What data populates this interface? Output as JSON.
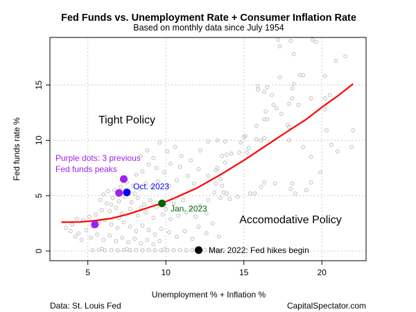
{
  "chart_data": {
    "type": "scatter",
    "title": "Fed Funds vs. Unemployment Rate + Consumer Inflation Rate",
    "subtitle": "Based on monthly data since July 1954",
    "xlabel": "Unemployment % + Inflation %",
    "ylabel": "Fed funds rate %",
    "xlim": [
      2.57,
      22.83
    ],
    "ylim": [
      -0.875,
      19.3
    ],
    "xticks": [
      5,
      10,
      15,
      20
    ],
    "yticks": [
      0,
      5,
      10,
      15
    ],
    "grid": true,
    "point_color": "#bebebe",
    "fit_color": "#ff0000",
    "points": [
      [
        17.2,
        19.1
      ],
      [
        18.0,
        19.0
      ],
      [
        19.4,
        19.1
      ],
      [
        19.6,
        18.9
      ],
      [
        17.3,
        18.5
      ],
      [
        18.2,
        17.8
      ],
      [
        20.9,
        17.2
      ],
      [
        21.5,
        17.6
      ],
      [
        17.3,
        15.7
      ],
      [
        18.6,
        15.9
      ],
      [
        18.8,
        15.9
      ],
      [
        20.2,
        15.8
      ],
      [
        15.9,
        14.6
      ],
      [
        15.9,
        14.9
      ],
      [
        16.5,
        14.8
      ],
      [
        16.3,
        14.4
      ],
      [
        18.2,
        15.1
      ],
      [
        18.1,
        14.7
      ],
      [
        16.8,
        14.1
      ],
      [
        18.1,
        13.8
      ],
      [
        17.9,
        13.3
      ],
      [
        19.3,
        13.8
      ],
      [
        18.5,
        13.2
      ],
      [
        16.9,
        13.2
      ],
      [
        17.1,
        12.9
      ],
      [
        17.4,
        12.4
      ],
      [
        16.4,
        12.6
      ],
      [
        16.3,
        11.9
      ],
      [
        16.5,
        11.9
      ],
      [
        15.8,
        11.3
      ],
      [
        17.8,
        11.4
      ],
      [
        17.9,
        11.2
      ],
      [
        20.5,
        14.1
      ],
      [
        20.2,
        13.8
      ],
      [
        20.2,
        12.8
      ],
      [
        20.3,
        10.9
      ],
      [
        22.0,
        10.9
      ],
      [
        20.6,
        9.6
      ],
      [
        21.0,
        9.0
      ],
      [
        21.9,
        9.4
      ],
      [
        19.9,
        7.1
      ],
      [
        19.3,
        8.5
      ],
      [
        18.8,
        9.4
      ],
      [
        17.9,
        10.0
      ],
      [
        16.3,
        10.2
      ],
      [
        15.8,
        10.1
      ],
      [
        16.1,
        10.0
      ],
      [
        15.1,
        10.4
      ],
      [
        15.0,
        10.3
      ],
      [
        14.8,
        9.8
      ],
      [
        15.3,
        9.3
      ],
      [
        15.2,
        8.9
      ],
      [
        14.7,
        8.9
      ],
      [
        14.2,
        8.8
      ],
      [
        13.9,
        8.7
      ],
      [
        13.6,
        8.6
      ],
      [
        13.8,
        8.0
      ],
      [
        13.3,
        7.5
      ],
      [
        13.2,
        7.3
      ],
      [
        12.7,
        6.8
      ],
      [
        13.5,
        6.5
      ],
      [
        13.2,
        6.1
      ],
      [
        13.6,
        5.9
      ],
      [
        16.3,
        6.2
      ],
      [
        16.1,
        5.8
      ],
      [
        17.0,
        6.1
      ],
      [
        18.1,
        6.1
      ],
      [
        19.3,
        6.2
      ],
      [
        18.0,
        5.6
      ],
      [
        18.3,
        5.2
      ],
      [
        19.0,
        5.5
      ],
      [
        15.4,
        5.2
      ],
      [
        15.7,
        5.2
      ],
      [
        14.6,
        4.9
      ],
      [
        14.1,
        4.7
      ],
      [
        13.7,
        5.3
      ],
      [
        13.9,
        5.2
      ],
      [
        13.1,
        5.3
      ],
      [
        12.7,
        4.6
      ],
      [
        13.5,
        4.8
      ],
      [
        12.7,
        9.9
      ],
      [
        13.3,
        10.0
      ],
      [
        13.8,
        9.9
      ],
      [
        12.2,
        9.1
      ],
      [
        11.6,
        8.2
      ],
      [
        11.0,
        8.6
      ],
      [
        10.6,
        9.4
      ],
      [
        10.1,
        9.0
      ],
      [
        9.6,
        9.8
      ],
      [
        9.2,
        8.4
      ],
      [
        8.8,
        9.1
      ],
      [
        8.4,
        8.6
      ],
      [
        10.9,
        7.6
      ],
      [
        10.3,
        7.9
      ],
      [
        9.9,
        7.1
      ],
      [
        9.4,
        7.5
      ],
      [
        8.9,
        7.8
      ],
      [
        8.5,
        7.2
      ],
      [
        8.1,
        6.9
      ],
      [
        11.4,
        6.8
      ],
      [
        12.1,
        7.4
      ],
      [
        11.8,
        6.1
      ],
      [
        10.7,
        6.4
      ],
      [
        10.2,
        5.9
      ],
      [
        9.5,
        6.3
      ],
      [
        9.1,
        5.8
      ],
      [
        8.7,
        6.1
      ],
      [
        8.3,
        5.6
      ],
      [
        7.9,
        5.9
      ],
      [
        7.5,
        6.2
      ],
      [
        7.1,
        5.8
      ],
      [
        6.7,
        5.5
      ],
      [
        6.3,
        5.4
      ],
      [
        6.0,
        5.1
      ],
      [
        5.8,
        4.6
      ],
      [
        6.2,
        4.3
      ],
      [
        6.6,
        4.8
      ],
      [
        7.0,
        4.5
      ],
      [
        7.4,
        4.9
      ],
      [
        7.8,
        4.4
      ],
      [
        8.2,
        4.8
      ],
      [
        8.6,
        4.2
      ],
      [
        9.0,
        4.6
      ],
      [
        9.4,
        4.0
      ],
      [
        10.0,
        3.8
      ],
      [
        10.5,
        4.3
      ],
      [
        11.1,
        4.6
      ],
      [
        11.6,
        3.9
      ],
      [
        12.2,
        4.1
      ],
      [
        12.6,
        3.4
      ],
      [
        11.9,
        3.1
      ],
      [
        11.3,
        3.5
      ],
      [
        10.8,
        3.2
      ],
      [
        10.3,
        2.9
      ],
      [
        9.8,
        3.3
      ],
      [
        9.2,
        3.0
      ],
      [
        8.7,
        3.5
      ],
      [
        8.2,
        3.2
      ],
      [
        7.7,
        3.8
      ],
      [
        7.2,
        3.4
      ],
      [
        6.8,
        3.9
      ],
      [
        6.4,
        3.6
      ],
      [
        5.9,
        3.7
      ],
      [
        5.5,
        3.3
      ],
      [
        5.1,
        3.1
      ],
      [
        4.7,
        2.8
      ],
      [
        4.3,
        2.9
      ],
      [
        4.0,
        2.4
      ],
      [
        3.6,
        2.1
      ],
      [
        3.9,
        1.8
      ],
      [
        4.4,
        1.6
      ],
      [
        4.9,
        1.9
      ],
      [
        5.3,
        2.2
      ],
      [
        5.7,
        2.5
      ],
      [
        6.1,
        2.8
      ],
      [
        6.5,
        2.4
      ],
      [
        6.9,
        2.1
      ],
      [
        7.3,
        2.6
      ],
      [
        7.7,
        2.2
      ],
      [
        8.1,
        1.8
      ],
      [
        8.5,
        2.3
      ],
      [
        8.9,
        1.9
      ],
      [
        9.3,
        1.5
      ],
      [
        9.7,
        2.0
      ],
      [
        10.2,
        1.7
      ],
      [
        10.7,
        1.3
      ],
      [
        11.2,
        1.8
      ],
      [
        11.7,
        1.1
      ],
      [
        12.1,
        2.2
      ],
      [
        12.6,
        1.6
      ],
      [
        13.0,
        2.5
      ],
      [
        13.4,
        1.3
      ],
      [
        5.2,
        1.2
      ],
      [
        5.6,
        1.5
      ],
      [
        6.0,
        1.0
      ],
      [
        6.4,
        1.4
      ],
      [
        6.8,
        0.9
      ],
      [
        7.2,
        1.2
      ],
      [
        7.6,
        0.8
      ],
      [
        8.0,
        1.1
      ],
      [
        8.4,
        0.7
      ],
      [
        8.8,
        1.0
      ],
      [
        9.2,
        0.6
      ],
      [
        9.6,
        0.9
      ],
      [
        4.6,
        1.0
      ],
      [
        4.2,
        1.3
      ],
      [
        7.0,
        3.0
      ],
      [
        7.5,
        5.4
      ],
      [
        6.9,
        5.1
      ],
      [
        6.5,
        4.2
      ],
      [
        8.0,
        5.2
      ],
      [
        8.4,
        3.9
      ],
      [
        5.3,
        0.08
      ],
      [
        5.7,
        0.1
      ],
      [
        6.1,
        0.06
      ],
      [
        6.5,
        0.09
      ],
      [
        6.9,
        0.07
      ],
      [
        7.3,
        0.1
      ],
      [
        7.7,
        0.06
      ],
      [
        8.1,
        0.09
      ],
      [
        8.5,
        0.07
      ],
      [
        8.9,
        0.1
      ],
      [
        9.3,
        0.08
      ],
      [
        9.7,
        0.06
      ],
      [
        10.1,
        0.09
      ],
      [
        10.5,
        0.08
      ],
      [
        10.9,
        0.1
      ],
      [
        11.3,
        0.07
      ],
      [
        11.7,
        0.09
      ],
      [
        12.5,
        0.08
      ],
      [
        12.9,
        0.1
      ],
      [
        13.3,
        0.07
      ],
      [
        13.7,
        0.09
      ],
      [
        5.9,
        0.2
      ],
      [
        7.5,
        0.18
      ],
      [
        9.9,
        0.15
      ]
    ],
    "fit_line": [
      [
        3.3,
        2.6
      ],
      [
        4.5,
        2.62
      ],
      [
        5.5,
        2.75
      ],
      [
        6.5,
        2.95
      ],
      [
        7.5,
        3.3
      ],
      [
        8.5,
        3.75
      ],
      [
        9.7,
        4.3
      ],
      [
        10.5,
        4.75
      ],
      [
        12.0,
        5.7
      ],
      [
        13.5,
        6.9
      ],
      [
        15.0,
        8.2
      ],
      [
        16.5,
        9.6
      ],
      [
        18.0,
        11.0
      ],
      [
        19.0,
        11.9
      ],
      [
        20.0,
        13.0
      ],
      [
        21.0,
        14.0
      ],
      [
        22.0,
        15.1
      ]
    ],
    "highlights": [
      {
        "x": 5.45,
        "y": 2.4,
        "color": "#a020f0",
        "name": "previous-peak"
      },
      {
        "x": 7.0,
        "y": 5.25,
        "color": "#a020f0",
        "name": "previous-peak"
      },
      {
        "x": 7.3,
        "y": 6.5,
        "color": "#a020f0",
        "name": "previous-peak"
      },
      {
        "x": 7.5,
        "y": 5.3,
        "color": "#0000ff",
        "name": "oct-2023"
      },
      {
        "x": 9.75,
        "y": 4.3,
        "color": "#006400",
        "name": "jan-2023"
      },
      {
        "x": 12.1,
        "y": 0.08,
        "color": "#000000",
        "name": "mar-2022"
      }
    ],
    "annotations": {
      "tight": "Tight Policy",
      "accom": "Accomodative Policy",
      "purple1": "Purple dots: 3 previous",
      "purple2": "Fed funds peaks",
      "oct": "Oct. 2023",
      "jan": "Jan. 2023",
      "mar": "Mar. 2022: Fed hikes begin"
    },
    "annotation_colors": {
      "purple": "#a020f0",
      "oct": "#0000ff",
      "jan": "#006400",
      "mar": "#000000"
    },
    "source": "Data: St. Louis Fed",
    "credit": "CapitalSpectator.com"
  }
}
